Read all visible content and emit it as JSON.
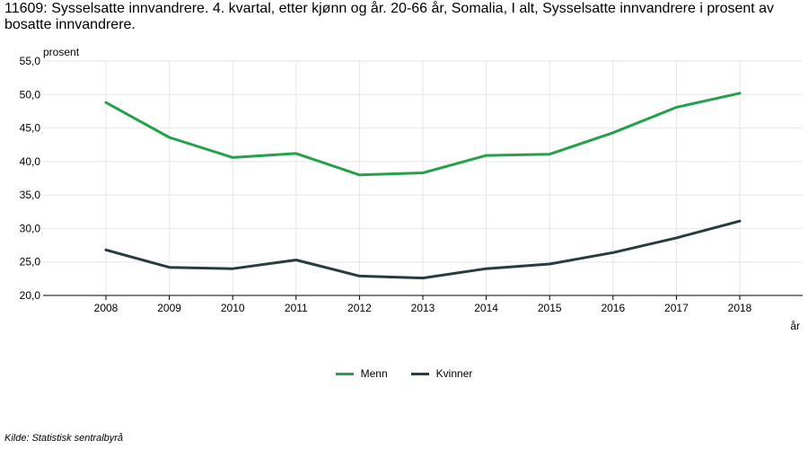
{
  "title": "11609: Sysselsatte innvandrere. 4. kvartal, etter kjønn og år. 20-66 år, Somalia, I alt, Sysselsatte innvandrere i prosent av bosatte innvandrere.",
  "source": "Kilde:  Statistisk sentralbyrå",
  "colors": {
    "menn": "#24a14b",
    "kvinner": "#263c41"
  },
  "chart_data": {
    "type": "line",
    "title": "11609: Sysselsatte innvandrere. 4. kvartal, etter kjønn og år. 20-66 år, Somalia, I alt, Sysselsatte innvandrere i prosent av bosatte innvandrere.",
    "xlabel": "år",
    "ylabel": "prosent",
    "x": [
      "2008",
      "2009",
      "2010",
      "2011",
      "2012",
      "2013",
      "2014",
      "2015",
      "2016",
      "2017",
      "2018"
    ],
    "ylim": [
      20,
      55
    ],
    "yticks": [
      "20,0",
      "25,0",
      "30,0",
      "35,0",
      "40,0",
      "45,0",
      "50,0",
      "55,0"
    ],
    "grid": true,
    "legend_position": "bottom",
    "series": [
      {
        "name": "Menn",
        "color": "#24a14b",
        "values": [
          48.8,
          43.6,
          40.6,
          41.2,
          38.0,
          38.3,
          40.9,
          41.1,
          44.3,
          48.1,
          50.2
        ]
      },
      {
        "name": "Kvinner",
        "color": "#263c41",
        "values": [
          26.8,
          24.2,
          24.0,
          25.3,
          22.9,
          22.6,
          24.0,
          24.7,
          26.4,
          28.6,
          31.1
        ]
      }
    ]
  }
}
